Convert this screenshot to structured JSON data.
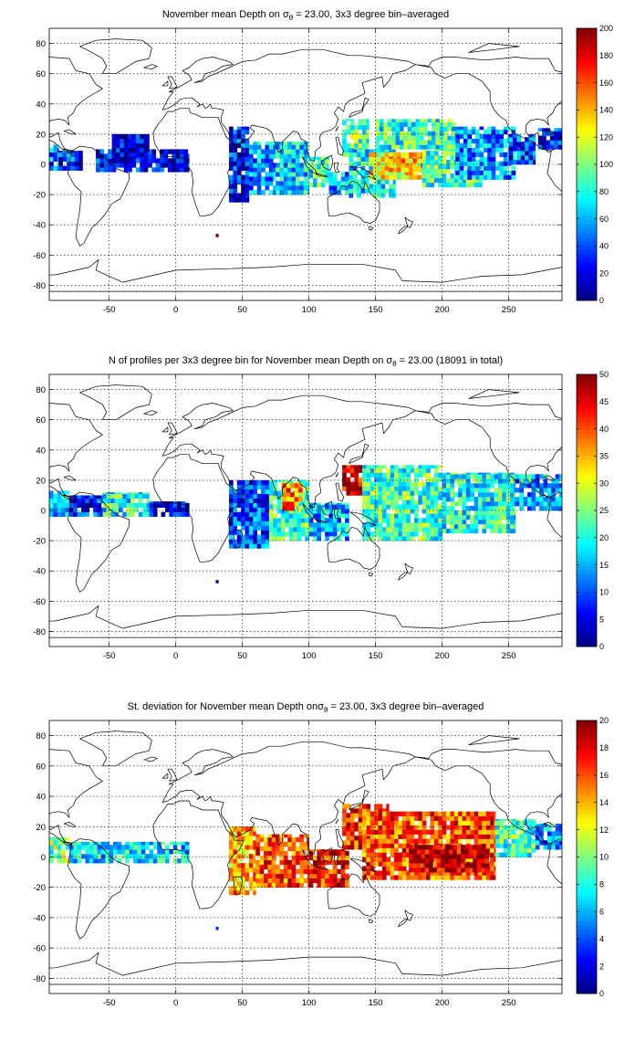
{
  "chart_data": [
    {
      "type": "heatmap",
      "title": "November mean Depth on σθ = 23.00, 3x3 degree bin–averaged",
      "title_prefix": "November mean Depth on ",
      "title_suffix": " = 23.00, 3x3 degree bin–averaged",
      "symbol": "σ",
      "symbol_sub": "θ",
      "xlim": [
        -95,
        290
      ],
      "ylim": [
        -90,
        90
      ],
      "xticks": [
        -50,
        0,
        50,
        100,
        150,
        200,
        250
      ],
      "yticks": [
        80,
        60,
        40,
        20,
        0,
        -20,
        -40,
        -60,
        -80
      ],
      "grid": true,
      "colorbar": {
        "min": 0,
        "max": 200,
        "ticks": [
          0,
          20,
          40,
          60,
          80,
          100,
          120,
          140,
          160,
          180,
          200
        ],
        "colormap": "jet",
        "placement": "right"
      },
      "regions": [
        {
          "x": [
            -95,
            -88
          ],
          "y": [
            -4,
            13
          ],
          "value": 55
        },
        {
          "x": [
            -88,
            -70
          ],
          "y": [
            -4,
            9
          ],
          "value": 35
        },
        {
          "x": [
            -60,
            10
          ],
          "y": [
            -5,
            10
          ],
          "value": 25
        },
        {
          "x": [
            -48,
            -20
          ],
          "y": [
            5,
            20
          ],
          "value": 15
        },
        {
          "x": [
            40,
            55
          ],
          "y": [
            -25,
            25
          ],
          "value": 30
        },
        {
          "x": [
            55,
            75
          ],
          "y": [
            -20,
            15
          ],
          "value": 55
        },
        {
          "x": [
            75,
            100
          ],
          "y": [
            -20,
            15
          ],
          "value": 70
        },
        {
          "x": [
            100,
            115
          ],
          "y": [
            -15,
            5
          ],
          "value": 85
        },
        {
          "x": [
            115,
            130
          ],
          "y": [
            -20,
            -5
          ],
          "value": 60
        },
        {
          "x": [
            125,
            145
          ],
          "y": [
            5,
            30
          ],
          "value": 95
        },
        {
          "x": [
            130,
            165
          ],
          "y": [
            -22,
            10
          ],
          "value": 75
        },
        {
          "x": [
            145,
            185
          ],
          "y": [
            -10,
            8
          ],
          "value": 125
        },
        {
          "x": [
            160,
            200
          ],
          "y": [
            -5,
            5
          ],
          "value": 140
        },
        {
          "x": [
            150,
            210
          ],
          "y": [
            10,
            30
          ],
          "value": 85
        },
        {
          "x": [
            185,
            230
          ],
          "y": [
            -15,
            10
          ],
          "value": 90
        },
        {
          "x": [
            210,
            255
          ],
          "y": [
            -10,
            25
          ],
          "value": 55
        },
        {
          "x": [
            250,
            270
          ],
          "y": [
            0,
            20
          ],
          "value": 35
        },
        {
          "x": [
            272,
            290
          ],
          "y": [
            10,
            24
          ],
          "value": 30
        },
        {
          "x": [
            30,
            32
          ],
          "y": [
            -48,
            -46
          ],
          "value": 200
        }
      ]
    },
    {
      "type": "heatmap",
      "title": "N of profiles per 3x3 degree bin for November mean Depth on σθ = 23.00 (18091 in total)",
      "title_prefix": "N of profiles per 3x3 degree bin for November mean Depth on ",
      "title_suffix": " = 23.00 (18091 in total)",
      "symbol": "σ",
      "symbol_sub": "θ",
      "xlim": [
        -95,
        290
      ],
      "ylim": [
        -90,
        90
      ],
      "xticks": [
        -50,
        0,
        50,
        100,
        150,
        200,
        250
      ],
      "yticks": [
        80,
        60,
        40,
        20,
        0,
        -20,
        -40,
        -60,
        -80
      ],
      "grid": true,
      "colorbar": {
        "min": 0,
        "max": 50,
        "ticks": [
          0,
          5,
          10,
          15,
          20,
          25,
          30,
          35,
          40,
          45,
          50
        ],
        "colormap": "jet",
        "placement": "right"
      },
      "regions": [
        {
          "x": [
            -95,
            -80
          ],
          "y": [
            -4,
            13
          ],
          "value": 15
        },
        {
          "x": [
            -80,
            -55
          ],
          "y": [
            -4,
            10
          ],
          "value": 8
        },
        {
          "x": [
            -55,
            -20
          ],
          "y": [
            -4,
            12
          ],
          "value": 20
        },
        {
          "x": [
            -20,
            10
          ],
          "y": [
            -4,
            6
          ],
          "value": 6
        },
        {
          "x": [
            40,
            70
          ],
          "y": [
            -25,
            20
          ],
          "value": 10
        },
        {
          "x": [
            70,
            100
          ],
          "y": [
            -20,
            20
          ],
          "value": 22
        },
        {
          "x": [
            80,
            95
          ],
          "y": [
            0,
            18
          ],
          "value": 38
        },
        {
          "x": [
            100,
            130
          ],
          "y": [
            -20,
            5
          ],
          "value": 15
        },
        {
          "x": [
            125,
            145
          ],
          "y": [
            10,
            30
          ],
          "value": 45
        },
        {
          "x": [
            140,
            200
          ],
          "y": [
            -20,
            30
          ],
          "value": 22
        },
        {
          "x": [
            200,
            255
          ],
          "y": [
            -15,
            25
          ],
          "value": 20
        },
        {
          "x": [
            255,
            290
          ],
          "y": [
            0,
            24
          ],
          "value": 15
        },
        {
          "x": [
            30,
            32
          ],
          "y": [
            -48,
            -46
          ],
          "value": 1
        }
      ]
    },
    {
      "type": "heatmap",
      "title": "St. deviation for November mean Depth onσθ = 23.00, 3x3 degree bin–averaged",
      "title_prefix": "St. deviation for November mean Depth on",
      "title_suffix": " = 23.00, 3x3 degree bin–averaged",
      "symbol": "σ",
      "symbol_sub": "θ",
      "xlim": [
        -95,
        290
      ],
      "ylim": [
        -90,
        90
      ],
      "xticks": [
        -50,
        0,
        50,
        100,
        150,
        200,
        250
      ],
      "yticks": [
        80,
        60,
        40,
        20,
        0,
        -20,
        -40,
        -60,
        -80
      ],
      "grid": true,
      "colorbar": {
        "min": 0,
        "max": 20,
        "ticks": [
          0,
          2,
          4,
          6,
          8,
          10,
          12,
          14,
          16,
          18,
          20
        ],
        "colormap": "jet",
        "placement": "right"
      },
      "regions": [
        {
          "x": [
            -95,
            -80
          ],
          "y": [
            -4,
            13
          ],
          "value": 10
        },
        {
          "x": [
            -80,
            10
          ],
          "y": [
            -4,
            10
          ],
          "value": 7
        },
        {
          "x": [
            40,
            60
          ],
          "y": [
            -25,
            20
          ],
          "value": 14
        },
        {
          "x": [
            60,
            100
          ],
          "y": [
            -20,
            15
          ],
          "value": 16
        },
        {
          "x": [
            100,
            130
          ],
          "y": [
            -20,
            5
          ],
          "value": 17
        },
        {
          "x": [
            125,
            160
          ],
          "y": [
            5,
            35
          ],
          "value": 17
        },
        {
          "x": [
            140,
            240
          ],
          "y": [
            -15,
            30
          ],
          "value": 16
        },
        {
          "x": [
            175,
            235
          ],
          "y": [
            -10,
            8
          ],
          "value": 19
        },
        {
          "x": [
            240,
            270
          ],
          "y": [
            0,
            25
          ],
          "value": 9
        },
        {
          "x": [
            270,
            290
          ],
          "y": [
            5,
            22
          ],
          "value": 6
        },
        {
          "x": [
            30,
            32
          ],
          "y": [
            -48,
            -46
          ],
          "value": 1
        }
      ]
    }
  ]
}
